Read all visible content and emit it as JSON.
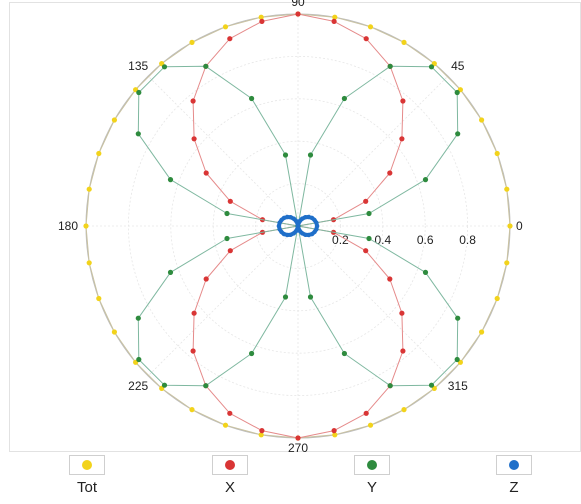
{
  "chart_data": {
    "type": "scatter",
    "title": "",
    "axis": {
      "kind": "polar",
      "angle_ticks": [
        "0",
        "45",
        "90",
        "135",
        "180",
        "225",
        "270",
        "315"
      ],
      "angle_tick_values": [
        0,
        45,
        90,
        135,
        180,
        225,
        270,
        315
      ],
      "radial_ticks": [
        "0.2",
        "0.4",
        "0.6",
        "0.8"
      ],
      "radial_tick_values": [
        0.2,
        0.4,
        0.6,
        0.8
      ],
      "rlim": [
        0,
        1
      ]
    },
    "grid": true,
    "legend": {
      "placement": "bottom"
    },
    "series": [
      {
        "name": "Tot",
        "color": "#f2d31b",
        "line_color": "#c9c2a0",
        "pattern": "r = 1",
        "values": {
          "theta_start": 0,
          "theta_step": 10,
          "r": [
            1,
            1,
            1,
            1,
            1,
            1,
            1,
            1,
            1,
            1,
            1,
            1,
            1,
            1,
            1,
            1,
            1,
            1,
            1,
            1,
            1,
            1,
            1,
            1,
            1,
            1,
            1,
            1,
            1,
            1,
            1,
            1,
            1,
            1,
            1,
            1
          ]
        }
      },
      {
        "name": "X",
        "color": "#d93535",
        "line_color": "#e58a8a",
        "pattern": "r = |sin(theta)|",
        "values": {
          "theta_start": 0,
          "theta_step": 10,
          "r": [
            0,
            0.17,
            0.34,
            0.5,
            0.64,
            0.77,
            0.87,
            0.94,
            0.98,
            1,
            0.98,
            0.94,
            0.87,
            0.77,
            0.64,
            0.5,
            0.34,
            0.17,
            0,
            0.17,
            0.34,
            0.5,
            0.64,
            0.77,
            0.87,
            0.94,
            0.98,
            1,
            0.98,
            0.94,
            0.87,
            0.77,
            0.64,
            0.5,
            0.34,
            0.17
          ]
        }
      },
      {
        "name": "Y",
        "color": "#2e8b3e",
        "line_color": "#7fb8a0",
        "pattern": "r = |sin(2*theta)|",
        "values": {
          "theta_start": 0,
          "theta_step": 10,
          "r": [
            0,
            0.34,
            0.64,
            0.87,
            0.98,
            0.98,
            0.87,
            0.64,
            0.34,
            0,
            0.34,
            0.64,
            0.87,
            0.98,
            0.98,
            0.87,
            0.64,
            0.34,
            0,
            0.34,
            0.64,
            0.87,
            0.98,
            0.98,
            0.87,
            0.64,
            0.34,
            0,
            0.34,
            0.64,
            0.87,
            0.98,
            0.98,
            0.87,
            0.64,
            0.34
          ]
        }
      },
      {
        "name": "Z",
        "color": "#1f6fc9",
        "line_color": "#1f6fc9",
        "pattern": "small figure-eight near origin",
        "values": {
          "theta_start": 0,
          "theta_step": 10,
          "r": [
            0.09,
            0.088,
            0.083,
            0.076,
            0.066,
            0.054,
            0.04,
            0.025,
            0.01,
            0,
            0.01,
            0.025,
            0.04,
            0.054,
            0.066,
            0.076,
            0.083,
            0.088,
            0.09,
            0.088,
            0.083,
            0.076,
            0.066,
            0.054,
            0.04,
            0.025,
            0.01,
            0,
            0.01,
            0.025,
            0.04,
            0.054,
            0.066,
            0.076,
            0.083,
            0.088
          ]
        }
      }
    ]
  }
}
